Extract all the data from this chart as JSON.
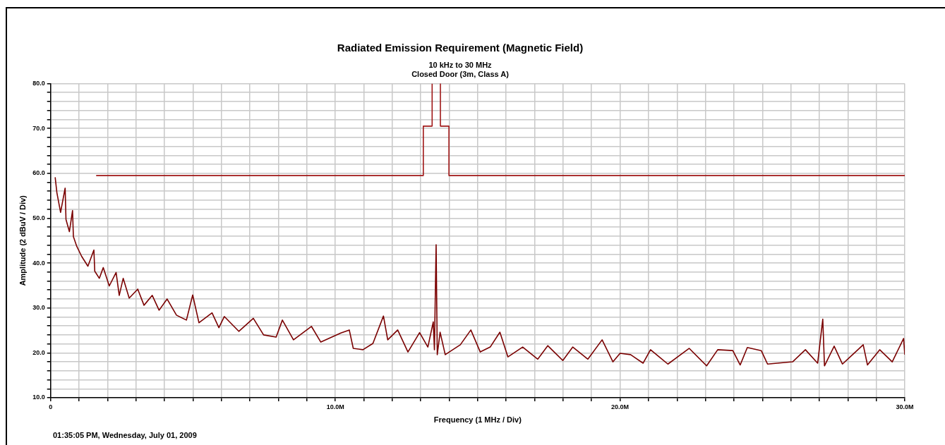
{
  "chart_data": {
    "type": "line",
    "title": "Radiated Emission Requirement (Magnetic Field)",
    "subtitle": "10 kHz to 30 MHz",
    "xlabel": "Frequency (1 MHz / Div)",
    "ylabel": "Amplitude (2 dBuV / Div)",
    "annotations": [
      "Closed Door (3m, Class A)",
      "01:35:05 PM, Wednesday, July 01, 2009"
    ],
    "xlim": [
      0,
      30
    ],
    "xticks": [
      0,
      {
        "value": 1,
        "label": null
      },
      {
        "value": 2,
        "label": null
      },
      {
        "value": 3,
        "label": null
      },
      {
        "value": 4,
        "label": null
      },
      {
        "value": 5,
        "label": null
      },
      {
        "value": 6,
        "label": null
      },
      {
        "value": 7,
        "label": null
      },
      {
        "value": 8,
        "label": null
      },
      {
        "value": 9,
        "label": null
      },
      {
        "value": 10,
        "label": "10.0M"
      },
      {
        "value": 11,
        "label": null
      },
      {
        "value": 12,
        "label": null
      },
      {
        "value": 13,
        "label": null
      },
      {
        "value": 14,
        "label": null
      },
      {
        "value": 15,
        "label": null
      },
      {
        "value": 16,
        "label": null
      },
      {
        "value": 17,
        "label": null
      },
      {
        "value": 18,
        "label": null
      },
      {
        "value": 19,
        "label": null
      },
      {
        "value": 20,
        "label": "20.0M"
      },
      {
        "value": 21,
        "label": null
      },
      {
        "value": 22,
        "label": null
      },
      {
        "value": 23,
        "label": null
      },
      {
        "value": 24,
        "label": null
      },
      {
        "value": 25,
        "label": null
      },
      {
        "value": 26,
        "label": null
      },
      {
        "value": 27,
        "label": null
      },
      {
        "value": 28,
        "label": null
      },
      {
        "value": 29,
        "label": null
      },
      {
        "value": 30,
        "label": "30.0M"
      }
    ],
    "ylim": [
      10,
      80
    ],
    "yticks": [
      {
        "value": 10,
        "label": "10.0"
      },
      {
        "value": 12,
        "label": null
      },
      {
        "value": 14,
        "label": null
      },
      {
        "value": 16,
        "label": null
      },
      {
        "value": 18,
        "label": null
      },
      {
        "value": 20,
        "label": "20.0"
      },
      {
        "value": 22,
        "label": null
      },
      {
        "value": 24,
        "label": null
      },
      {
        "value": 26,
        "label": null
      },
      {
        "value": 28,
        "label": null
      },
      {
        "value": 30,
        "label": "30.0"
      },
      {
        "value": 32,
        "label": null
      },
      {
        "value": 34,
        "label": null
      },
      {
        "value": 36,
        "label": null
      },
      {
        "value": 38,
        "label": null
      },
      {
        "value": 40,
        "label": "40.0"
      },
      {
        "value": 42,
        "label": null
      },
      {
        "value": 44,
        "label": null
      },
      {
        "value": 46,
        "label": null
      },
      {
        "value": 48,
        "label": null
      },
      {
        "value": 50,
        "label": "50.0"
      },
      {
        "value": 52,
        "label": null
      },
      {
        "value": 54,
        "label": null
      },
      {
        "value": 56,
        "label": null
      },
      {
        "value": 58,
        "label": null
      },
      {
        "value": 60,
        "label": "60.0"
      },
      {
        "value": 62,
        "label": null
      },
      {
        "value": 64,
        "label": null
      },
      {
        "value": 66,
        "label": null
      },
      {
        "value": 68,
        "label": null
      },
      {
        "value": 70,
        "label": "70.0"
      },
      {
        "value": 72,
        "label": null
      },
      {
        "value": 74,
        "label": null
      },
      {
        "value": 76,
        "label": null
      },
      {
        "value": 78,
        "label": null
      },
      {
        "value": 80,
        "label": "80.0"
      }
    ],
    "grid": true,
    "legend": false,
    "marker": "none",
    "line_style": "solid",
    "series": [
      {
        "color": "#7a0000",
        "x": [
          0.16,
          0.22,
          0.35,
          0.51,
          0.54,
          0.66,
          0.77,
          0.8,
          0.92,
          1.09,
          1.31,
          1.52,
          1.55,
          1.71,
          1.85,
          2.06,
          2.3,
          2.41,
          2.55,
          2.76,
          3.06,
          3.28,
          3.57,
          3.81,
          4.09,
          4.42,
          4.77,
          4.99,
          5.21,
          5.67,
          5.91,
          6.1,
          6.61,
          7.12,
          7.48,
          7.92,
          8.14,
          8.53,
          9.16,
          9.49,
          10.19,
          10.49,
          10.63,
          10.97,
          11.32,
          11.69,
          11.84,
          12.19,
          12.55,
          12.96,
          13.25,
          13.44,
          13.48,
          13.54,
          13.58,
          13.68,
          13.86,
          14.39,
          14.76,
          15.09,
          15.44,
          15.78,
          16.06,
          16.58,
          17.11,
          17.46,
          17.99,
          18.34,
          18.87,
          19.37,
          19.75,
          20.0,
          20.37,
          20.81,
          21.07,
          21.68,
          22.43,
          23.04,
          23.43,
          23.96,
          24.22,
          24.47,
          24.96,
          25.18,
          26.06,
          26.51,
          26.94,
          27.12,
          27.18,
          27.52,
          27.81,
          28.54,
          28.69,
          29.12,
          29.56,
          29.96,
          30.0
        ],
        "values": [
          59.1,
          55.7,
          51.3,
          56.7,
          49.7,
          47.0,
          51.7,
          45.9,
          43.7,
          41.5,
          39.3,
          42.9,
          38.2,
          36.6,
          39.0,
          34.9,
          37.9,
          32.8,
          36.6,
          32.2,
          34.2,
          30.6,
          32.8,
          29.5,
          32.0,
          28.4,
          27.3,
          32.9,
          26.7,
          28.9,
          25.6,
          28.1,
          24.8,
          27.7,
          24.0,
          23.5,
          27.3,
          22.9,
          25.9,
          22.4,
          24.4,
          25.1,
          21.0,
          20.7,
          22.1,
          28.2,
          22.9,
          25.1,
          20.2,
          24.5,
          21.3,
          26.9,
          20.7,
          44.1,
          19.6,
          24.6,
          19.6,
          21.8,
          25.1,
          20.2,
          21.3,
          24.6,
          19.1,
          21.3,
          18.6,
          21.6,
          18.3,
          21.3,
          18.6,
          22.9,
          18.0,
          19.9,
          19.6,
          17.7,
          20.7,
          17.5,
          21.0,
          17.1,
          20.7,
          20.5,
          17.3,
          21.2,
          20.5,
          17.5,
          18.0,
          20.7,
          17.7,
          27.5,
          17.1,
          21.5,
          17.5,
          21.8,
          17.3,
          20.7,
          18.0,
          23.2,
          19.6
        ]
      },
      {
        "color": "#a01818",
        "x": [
          1.6,
          13.09,
          13.09,
          13.4,
          13.4,
          13.55,
          13.69,
          13.69,
          13.99,
          13.99,
          30
        ],
        "values": [
          59.5,
          59.5,
          70.5,
          70.5,
          80,
          null,
          80,
          70.5,
          70.5,
          59.5,
          59.5
        ]
      }
    ]
  }
}
